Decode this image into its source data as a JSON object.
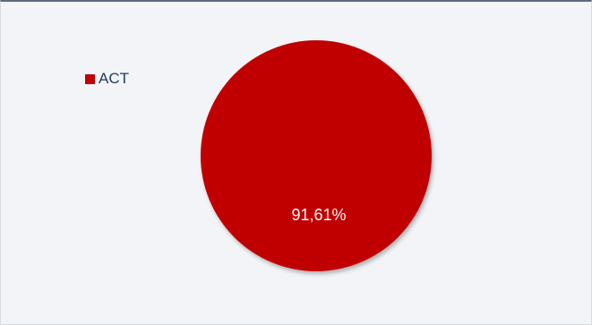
{
  "chart_data": {
    "type": "pie",
    "categories": [
      "ACT"
    ],
    "values": [
      91.61
    ],
    "data_labels": [
      "91,61%"
    ],
    "colors": [
      "#c00000"
    ],
    "legend": "left"
  }
}
